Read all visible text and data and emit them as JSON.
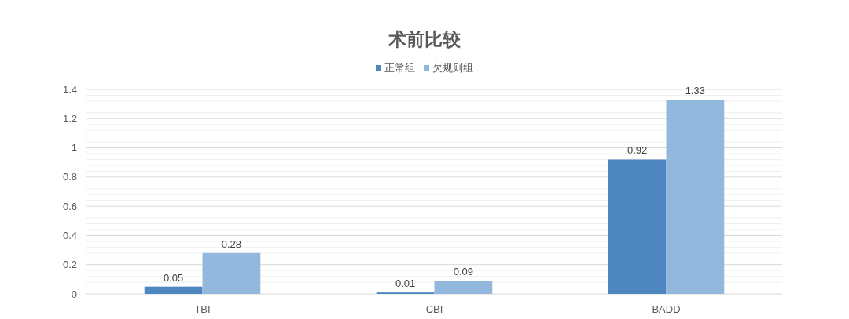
{
  "chart_data": {
    "type": "bar",
    "title": "术前比较",
    "categories": [
      "TBI",
      "CBI",
      "BADD"
    ],
    "series": [
      {
        "name": "正常组",
        "color": "#4e86bf",
        "values": [
          0.05,
          0.01,
          0.92
        ]
      },
      {
        "name": "欠规则组",
        "color": "#93b8de",
        "values": [
          0.28,
          0.09,
          1.33
        ]
      }
    ],
    "ylim": [
      0,
      1.4
    ],
    "yticks": [
      0,
      {
        "value": 0.04,
        "label": null
      },
      {
        "value": 0.08,
        "label": null
      },
      {
        "value": 0.12,
        "label": null
      },
      {
        "value": 0.16,
        "label": null
      },
      0.2,
      {
        "value": 0.24,
        "label": null
      },
      {
        "value": 0.28,
        "label": null
      },
      {
        "value": 0.32,
        "label": null
      },
      {
        "value": 0.36,
        "label": null
      },
      0.4,
      {
        "value": 0.44,
        "label": null
      },
      {
        "value": 0.48,
        "label": null
      },
      {
        "value": 0.52,
        "label": null
      },
      {
        "value": 0.56,
        "label": null
      },
      0.6,
      {
        "value": 0.64,
        "label": null
      },
      {
        "value": 0.68,
        "label": null
      },
      {
        "value": 0.72,
        "label": null
      },
      {
        "value": 0.76,
        "label": null
      },
      0.8,
      {
        "value": 0.84,
        "label": null
      },
      {
        "value": 0.88,
        "label": null
      },
      {
        "value": 0.92,
        "label": null
      },
      {
        "value": 0.96,
        "label": null
      },
      1,
      {
        "value": 1.04,
        "label": null
      },
      {
        "value": 1.08,
        "label": null
      },
      {
        "value": 1.12,
        "label": null
      },
      {
        "value": 1.16,
        "label": null
      },
      1.2,
      {
        "value": 1.24,
        "label": null
      },
      {
        "value": 1.28,
        "label": null
      },
      {
        "value": 1.32,
        "label": null
      },
      {
        "value": 1.36,
        "label": null
      },
      1.4
    ],
    "grid": "y",
    "legend": "top",
    "data_labels": true
  }
}
